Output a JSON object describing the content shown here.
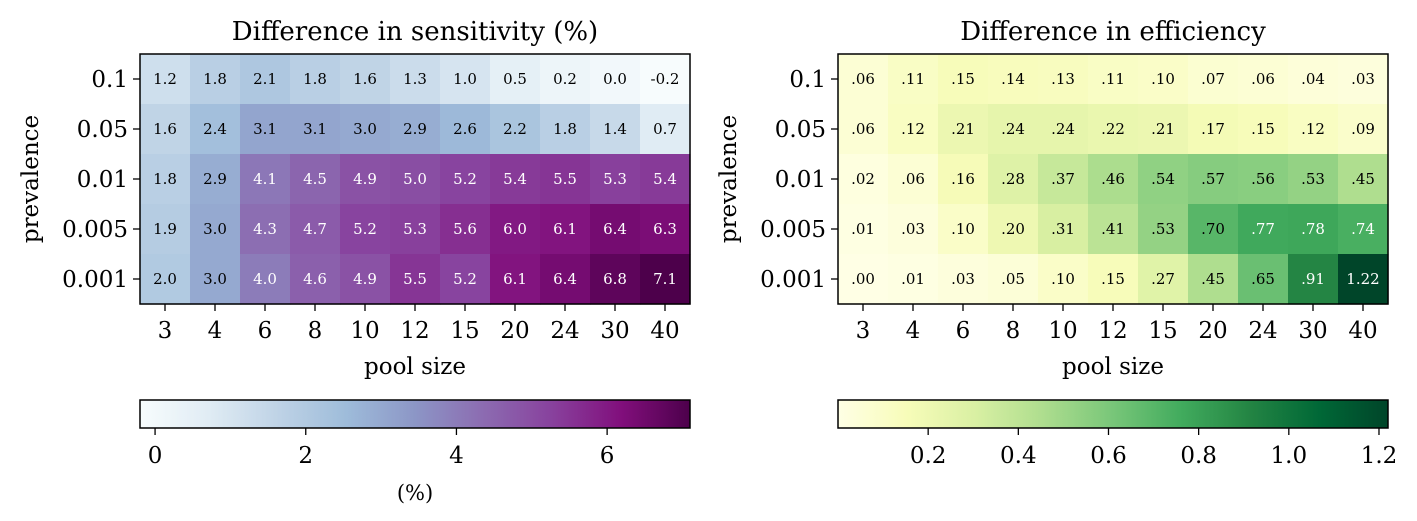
{
  "chart_data": [
    {
      "type": "heatmap",
      "title": "Difference in sensitivity (%)",
      "xlabel": "pool size",
      "ylabel": "prevalence",
      "x_ticks": [
        "3",
        "4",
        "6",
        "8",
        "10",
        "12",
        "15",
        "20",
        "24",
        "30",
        "40"
      ],
      "y_ticks": [
        "0.1",
        "0.05",
        "0.01",
        "0.005",
        "0.001"
      ],
      "values": [
        [
          1.2,
          1.8,
          2.1,
          1.8,
          1.6,
          1.3,
          1.0,
          0.5,
          0.2,
          0.0,
          -0.2
        ],
        [
          1.6,
          2.4,
          3.1,
          3.1,
          3.0,
          2.9,
          2.6,
          2.2,
          1.8,
          1.4,
          0.7
        ],
        [
          1.8,
          2.9,
          4.1,
          4.5,
          4.9,
          5.0,
          5.2,
          5.4,
          5.5,
          5.3,
          5.4
        ],
        [
          1.9,
          3.0,
          4.3,
          4.7,
          5.2,
          5.3,
          5.6,
          6.0,
          6.1,
          6.4,
          6.3
        ],
        [
          2.0,
          3.0,
          4.0,
          4.6,
          4.9,
          5.5,
          5.2,
          6.1,
          6.4,
          6.8,
          7.1
        ]
      ],
      "cell_labels": [
        [
          "1.2",
          "1.8",
          "2.1",
          "1.8",
          "1.6",
          "1.3",
          "1.0",
          "0.5",
          "0.2",
          "0.0",
          "-0.2"
        ],
        [
          "1.6",
          "2.4",
          "3.1",
          "3.1",
          "3.0",
          "2.9",
          "2.6",
          "2.2",
          "1.8",
          "1.4",
          "0.7"
        ],
        [
          "1.8",
          "2.9",
          "4.1",
          "4.5",
          "4.9",
          "5.0",
          "5.2",
          "5.4",
          "5.5",
          "5.3",
          "5.4"
        ],
        [
          "1.9",
          "3.0",
          "4.3",
          "4.7",
          "5.2",
          "5.3",
          "5.6",
          "6.0",
          "6.1",
          "6.4",
          "6.3"
        ],
        [
          "2.0",
          "3.0",
          "4.0",
          "4.6",
          "4.9",
          "5.5",
          "5.2",
          "6.1",
          "6.4",
          "6.8",
          "7.1"
        ]
      ],
      "vmin": -0.2,
      "vmax": 7.1,
      "colormap": "BuPu",
      "colorbar": {
        "orientation": "horizontal",
        "ticks": [
          0,
          2,
          4,
          6
        ],
        "tick_labels": [
          "0",
          "2",
          "4",
          "6"
        ],
        "label": "(%)"
      }
    },
    {
      "type": "heatmap",
      "title": "Difference in efficiency",
      "xlabel": "pool size",
      "ylabel": "prevalence",
      "x_ticks": [
        "3",
        "4",
        "6",
        "8",
        "10",
        "12",
        "15",
        "20",
        "24",
        "30",
        "40"
      ],
      "y_ticks": [
        "0.1",
        "0.05",
        "0.01",
        "0.005",
        "0.001"
      ],
      "values": [
        [
          0.06,
          0.11,
          0.15,
          0.14,
          0.13,
          0.11,
          0.1,
          0.07,
          0.06,
          0.04,
          0.03
        ],
        [
          0.06,
          0.12,
          0.21,
          0.24,
          0.24,
          0.22,
          0.21,
          0.17,
          0.15,
          0.12,
          0.09
        ],
        [
          0.02,
          0.06,
          0.16,
          0.28,
          0.37,
          0.46,
          0.54,
          0.57,
          0.56,
          0.53,
          0.45
        ],
        [
          0.01,
          0.03,
          0.1,
          0.2,
          0.31,
          0.41,
          0.53,
          0.7,
          0.77,
          0.78,
          0.74
        ],
        [
          0.0,
          0.01,
          0.03,
          0.05,
          0.1,
          0.15,
          0.27,
          0.45,
          0.65,
          0.91,
          1.22
        ]
      ],
      "cell_labels": [
        [
          ".06",
          ".11",
          ".15",
          ".14",
          ".13",
          ".11",
          ".10",
          ".07",
          ".06",
          ".04",
          ".03"
        ],
        [
          ".06",
          ".12",
          ".21",
          ".24",
          ".24",
          ".22",
          ".21",
          ".17",
          ".15",
          ".12",
          ".09"
        ],
        [
          ".02",
          ".06",
          ".16",
          ".28",
          ".37",
          ".46",
          ".54",
          ".57",
          ".56",
          ".53",
          ".45"
        ],
        [
          ".01",
          ".03",
          ".10",
          ".20",
          ".31",
          ".41",
          ".53",
          ".70",
          ".77",
          ".78",
          ".74"
        ],
        [
          ".00",
          ".01",
          ".03",
          ".05",
          ".10",
          ".15",
          ".27",
          ".45",
          ".65",
          ".91",
          "1.22"
        ]
      ],
      "vmin": 0.0,
      "vmax": 1.22,
      "colormap": "YlGn",
      "colorbar": {
        "orientation": "horizontal",
        "ticks": [
          0.2,
          0.4,
          0.6,
          0.8,
          1.0,
          1.2
        ],
        "tick_labels": [
          "0.2",
          "0.4",
          "0.6",
          "0.8",
          "1.0",
          "1.2"
        ],
        "label": ""
      }
    }
  ]
}
